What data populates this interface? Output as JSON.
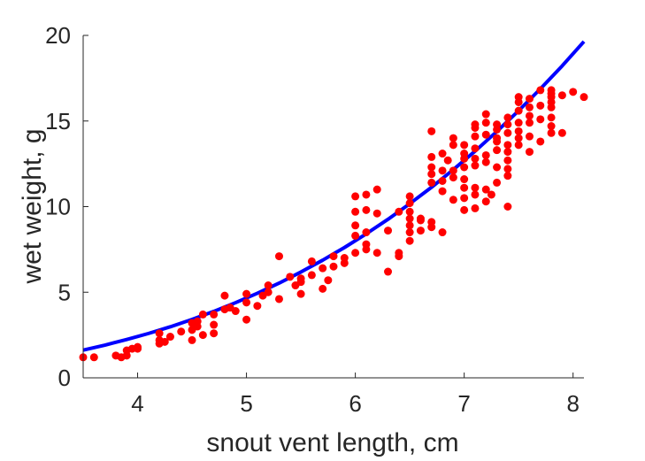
{
  "chart_data": {
    "type": "scatter",
    "title": "",
    "xlabel": "snout vent length, cm",
    "ylabel": "wet weight, g",
    "xlim": [
      3.5,
      8.1
    ],
    "ylim": [
      0,
      20
    ],
    "xticks": [
      4,
      5,
      6,
      7,
      8
    ],
    "yticks": [
      0,
      5,
      10,
      15,
      20
    ],
    "grid": false,
    "colors": {
      "points": "#ff0000",
      "fit": "#0000ff",
      "axis": "#262626"
    },
    "series": [
      {
        "kind": "points",
        "x": [
          3.5,
          3.6,
          3.8,
          3.85,
          3.9,
          3.9,
          3.95,
          4.0,
          4.0,
          4.2,
          4.2,
          4.2,
          4.25,
          4.3,
          4.4,
          4.5,
          4.5,
          4.5,
          4.55,
          4.55,
          4.6,
          4.6,
          4.7,
          4.7,
          4.7,
          4.8,
          4.8,
          4.85,
          4.9,
          5.0,
          5.0,
          5.0,
          5.1,
          5.15,
          5.2,
          5.2,
          5.3,
          5.3,
          5.4,
          5.45,
          5.5,
          5.5,
          5.5,
          5.6,
          5.6,
          5.7,
          5.7,
          5.75,
          5.8,
          5.8,
          5.9,
          5.9,
          6.0,
          6.0,
          6.0,
          6.0,
          6.0,
          6.1,
          6.1,
          6.1,
          6.1,
          6.1,
          6.2,
          6.2,
          6.2,
          6.3,
          6.3,
          6.4,
          6.4,
          6.4,
          6.5,
          6.5,
          6.5,
          6.5,
          6.5,
          6.5,
          6.5,
          6.6,
          6.6,
          6.6,
          6.7,
          6.7,
          6.7,
          6.7,
          6.7,
          6.7,
          6.7,
          6.8,
          6.8,
          6.8,
          6.8,
          6.8,
          6.85,
          6.9,
          6.9,
          6.9,
          6.9,
          6.9,
          7.0,
          7.0,
          7.0,
          7.0,
          7.0,
          7.0,
          7.0,
          7.0,
          7.1,
          7.1,
          7.1,
          7.1,
          7.1,
          7.1,
          7.1,
          7.1,
          7.1,
          7.2,
          7.2,
          7.2,
          7.2,
          7.2,
          7.2,
          7.2,
          7.25,
          7.3,
          7.3,
          7.3,
          7.3,
          7.3,
          7.3,
          7.3,
          7.4,
          7.4,
          7.4,
          7.4,
          7.4,
          7.4,
          7.4,
          7.4,
          7.4,
          7.5,
          7.5,
          7.5,
          7.5,
          7.5,
          7.5,
          7.5,
          7.6,
          7.6,
          7.6,
          7.6,
          7.6,
          7.6,
          7.7,
          7.7,
          7.7,
          7.7,
          7.8,
          7.8,
          7.8,
          7.8,
          7.8,
          7.8,
          7.8,
          7.8,
          7.9,
          7.9,
          8.0,
          8.1
        ],
        "y": [
          1.2,
          1.2,
          1.3,
          1.2,
          1.3,
          1.6,
          1.7,
          1.7,
          1.8,
          2.0,
          2.2,
          2.6,
          2.1,
          2.4,
          2.7,
          2.2,
          2.8,
          3.2,
          3.3,
          3.0,
          2.5,
          3.7,
          2.6,
          3.1,
          3.7,
          4.0,
          4.8,
          4.1,
          3.9,
          3.4,
          4.4,
          4.9,
          4.2,
          4.8,
          5.0,
          5.4,
          4.6,
          7.1,
          5.9,
          5.4,
          4.9,
          5.6,
          5.8,
          6.0,
          6.8,
          5.2,
          6.4,
          5.7,
          6.5,
          7.1,
          6.7,
          7.0,
          7.3,
          8.3,
          8.9,
          9.7,
          10.6,
          7.5,
          7.8,
          8.5,
          9.8,
          10.7,
          7.3,
          9.6,
          11.0,
          6.2,
          8.6,
          7.1,
          7.3,
          9.7,
          8.0,
          8.5,
          8.9,
          9.3,
          9.7,
          10.2,
          10.6,
          8.6,
          9.2,
          9.3,
          8.8,
          9.1,
          11.4,
          11.9,
          12.3,
          12.9,
          14.4,
          8.5,
          10.9,
          11.5,
          12.1,
          13.1,
          12.7,
          10.4,
          11.7,
          12.1,
          13.6,
          14.0,
          9.8,
          10.5,
          11.1,
          11.6,
          12.3,
          12.8,
          13.1,
          13.6,
          9.9,
          10.7,
          11.1,
          12.4,
          12.8,
          13.4,
          14.1,
          14.6,
          14.8,
          10.3,
          11.0,
          12.6,
          13.0,
          14.2,
          14.9,
          15.4,
          10.7,
          11.4,
          12.3,
          13.3,
          13.8,
          14.0,
          14.5,
          14.8,
          10.0,
          11.8,
          12.2,
          12.7,
          13.2,
          13.6,
          14.3,
          14.8,
          15.2,
          13.6,
          14.0,
          14.4,
          14.9,
          15.6,
          16.1,
          16.4,
          13.2,
          14.1,
          14.9,
          15.3,
          15.8,
          16.3,
          13.8,
          15.1,
          15.9,
          16.8,
          14.3,
          14.7,
          15.2,
          15.8,
          16.1,
          16.4,
          16.6,
          16.8,
          14.3,
          16.5,
          16.7,
          16.4
        ]
      },
      {
        "kind": "fit-curve",
        "x": [
          3.5,
          3.7,
          3.9,
          4.1,
          4.3,
          4.5,
          4.7,
          4.9,
          5.1,
          5.3,
          5.5,
          5.7,
          5.9,
          6.1,
          6.3,
          6.5,
          6.7,
          6.9,
          7.1,
          7.3,
          7.5,
          7.7,
          7.9,
          8.1
        ],
        "y": [
          1.62,
          1.91,
          2.24,
          2.59,
          2.98,
          3.41,
          3.88,
          4.39,
          4.94,
          5.53,
          6.18,
          6.87,
          7.61,
          8.41,
          9.26,
          10.17,
          11.13,
          12.16,
          13.24,
          14.39,
          15.6,
          16.88,
          18.22,
          19.64
        ]
      }
    ]
  }
}
